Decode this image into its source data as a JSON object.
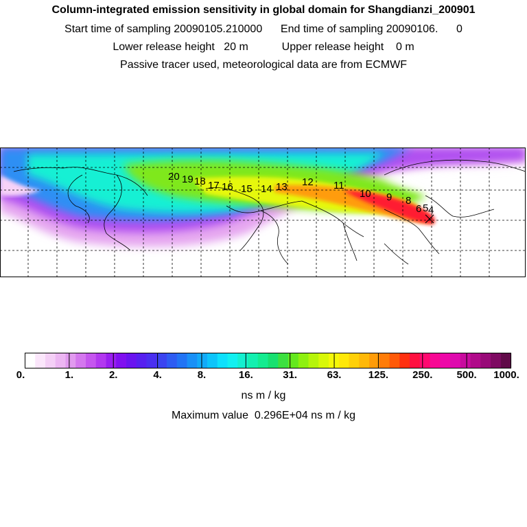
{
  "header": {
    "title": "Column-integrated emission sensitivity in global domain for Shangdianzi_200901",
    "sampling": "Start time of sampling 20090105.210000      End time of sampling 20090106.      0",
    "release": "Lower release height   20 m           Upper release height    0 m",
    "note": "Passive tracer used, meteorological data are from ECMWF"
  },
  "map": {
    "trajectory_labels": [
      "20",
      "19",
      "18",
      "17",
      "16",
      "15",
      "14",
      "13",
      "12",
      "11",
      "10",
      "9",
      "8",
      "6",
      "5",
      "4"
    ]
  },
  "colorbar": {
    "tick_labels": [
      "0.",
      "1.",
      "2.",
      "4.",
      "8.",
      "16.",
      "31.",
      "63.",
      "125.",
      "250.",
      "500.",
      "1000."
    ],
    "units": "ns m / kg",
    "colors": [
      "#ffffff",
      "#fbe6fb",
      "#f4cff6",
      "#ecb6f2",
      "#e19aef",
      "#d477ee",
      "#c556ee",
      "#b238ef",
      "#9a1ff0",
      "#8010f0",
      "#6a14f0",
      "#5720f0",
      "#4a2ff0",
      "#3b44f0",
      "#2e5cf2",
      "#2274f4",
      "#1990f6",
      "#12aaf8",
      "#0dc4fa",
      "#0ee0fc",
      "#12f0f0",
      "#14f0d0",
      "#14f0b0",
      "#14ec90",
      "#18e070",
      "#3ce040",
      "#64e81e",
      "#8ef010",
      "#b6f40a",
      "#d8f808",
      "#f4f808",
      "#ffe808",
      "#ffd008",
      "#ffb808",
      "#ff9c08",
      "#ff7c08",
      "#ff5a08",
      "#ff3010",
      "#ff1040",
      "#ff0870",
      "#f80894",
      "#ee08a8",
      "#de0aae",
      "#c80a9e",
      "#b00a8a",
      "#980a78",
      "#7e0a62",
      "#600a48"
    ]
  },
  "maximum_value": "Maximum value  0.296E+04 ns m / kg"
}
